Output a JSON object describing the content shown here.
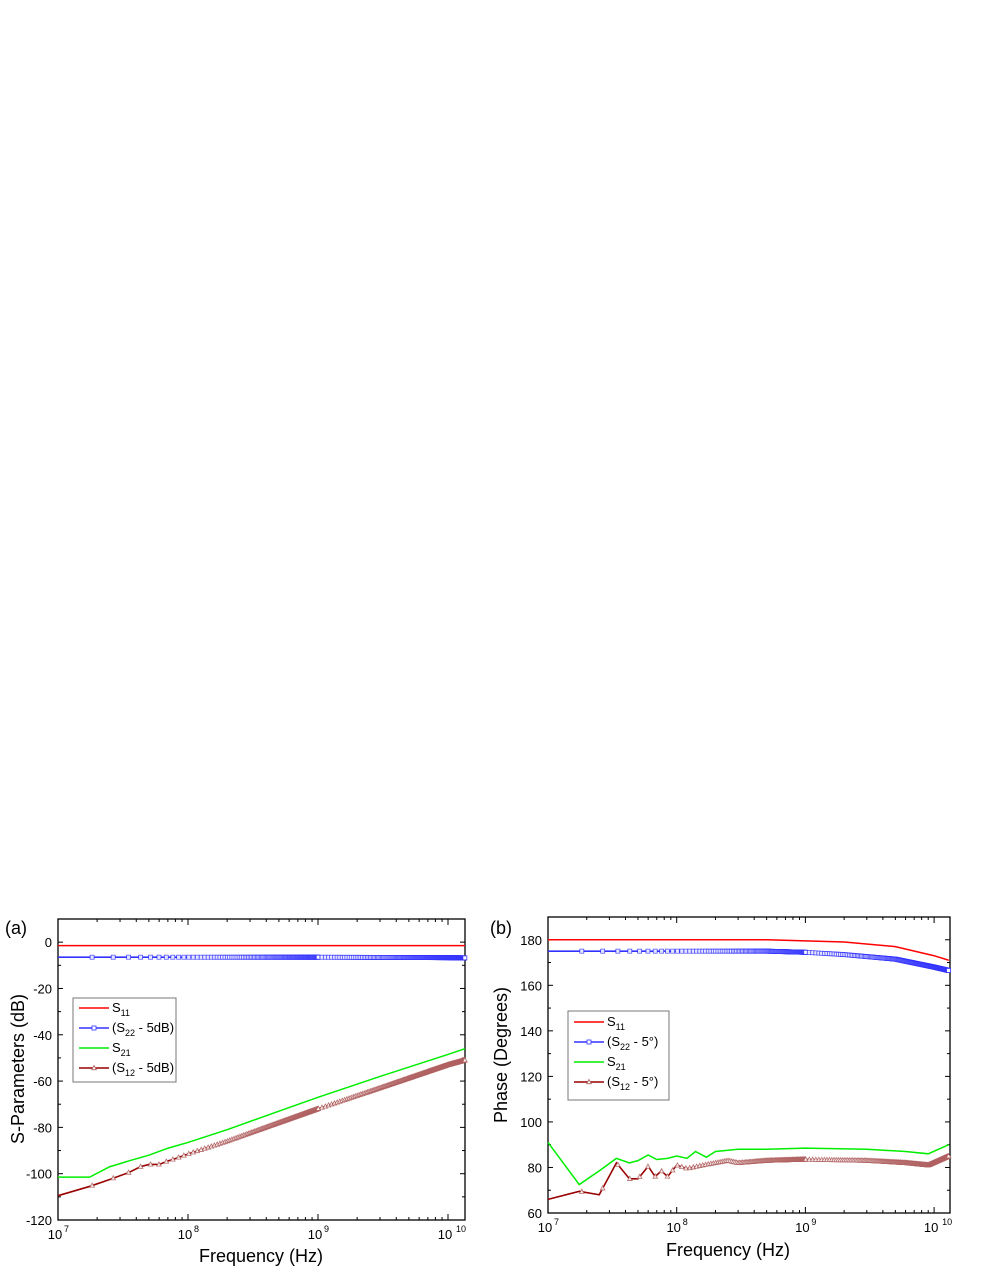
{
  "chart_data": [
    {
      "panel": "(a)",
      "type": "line",
      "title": "",
      "xlabel": "Frequency (Hz)",
      "ylabel": "S-Parameters (dB)",
      "xscale": "log",
      "xlim": [
        10000000.0,
        13500000000.0
      ],
      "ylim": [
        -120,
        10
      ],
      "xticks": [
        "10^7",
        "10^8",
        "10^9",
        "10^10"
      ],
      "yticks": [
        0,
        -20,
        -40,
        -60,
        -80,
        -100,
        -120
      ],
      "grid": false,
      "legend_position": "left-middle",
      "series": [
        {
          "name": "S11",
          "color": "#ff0000",
          "marker": "none",
          "x": [
            10000000.0,
            100000000.0,
            1000000000.0,
            13500000000.0
          ],
          "y": [
            -1.5,
            -1.5,
            -1.5,
            -1.5
          ]
        },
        {
          "name": "(S22 - 5dB)",
          "color": "#3333ff",
          "marker": "square",
          "x": [
            10000000.0,
            100000000.0,
            1000000000.0,
            10000000000.0,
            13500000000.0
          ],
          "y": [
            -6.5,
            -6.5,
            -6.5,
            -6.7,
            -6.8
          ]
        },
        {
          "name": "S21",
          "color": "#00ee00",
          "marker": "none",
          "x": [
            10000000.0,
            17500000.0,
            25000000.0,
            35000000.0,
            50000000.0,
            70000000.0,
            100000000.0,
            200000000.0,
            500000000.0,
            1000000000.0,
            3000000000.0,
            10000000000.0,
            13500000000.0
          ],
          "y": [
            -101.5,
            -101.5,
            -97,
            -94.5,
            -92,
            -89,
            -86.5,
            -81,
            -73,
            -67,
            -58,
            -48.5,
            -46
          ]
        },
        {
          "name": "(S12 - 5dB)",
          "color": "#990000",
          "marker": "triangle",
          "x": [
            10000000.0,
            17500000.0,
            25000000.0,
            35000000.0,
            43000000.0,
            50000000.0,
            60000000.0,
            70000000.0,
            80000000.0,
            100000000.0,
            200000000.0,
            500000000.0,
            1000000000.0,
            3000000000.0,
            10000000000.0,
            13500000000.0
          ],
          "y": [
            -109.5,
            -105.5,
            -102.5,
            -99.5,
            -97,
            -96,
            -96,
            -94.5,
            -93.5,
            -91.5,
            -86,
            -78,
            -72,
            -63,
            -53,
            -51
          ]
        }
      ]
    },
    {
      "panel": "(b)",
      "type": "line",
      "title": "",
      "xlabel": "Frequency (Hz)",
      "ylabel": "Phase (Degrees)",
      "xscale": "log",
      "xlim": [
        10000000.0,
        13000000000.0
      ],
      "ylim": [
        60,
        190
      ],
      "xticks": [
        "10^7",
        "10^8",
        "10^9",
        "10^10"
      ],
      "yticks": [
        60,
        80,
        100,
        120,
        140,
        160,
        180
      ],
      "grid": false,
      "legend_position": "left-middle",
      "series": [
        {
          "name": "S11",
          "color": "#ff0000",
          "marker": "none",
          "x": [
            10000000.0,
            100000000.0,
            500000000.0,
            1000000000.0,
            2000000000.0,
            5000000000.0,
            10000000000.0,
            13000000000.0
          ],
          "y": [
            180,
            180,
            180,
            179.5,
            179,
            177,
            173,
            171
          ]
        },
        {
          "name": "(S22 - 5°)",
          "color": "#3333ff",
          "marker": "square",
          "x": [
            10000000.0,
            100000000.0,
            500000000.0,
            1000000000.0,
            2000000000.0,
            5000000000.0,
            10000000000.0,
            13000000000.0
          ],
          "y": [
            175,
            175,
            175,
            174.5,
            173.5,
            171.5,
            168,
            166.5
          ]
        },
        {
          "name": "S21",
          "color": "#00ee00",
          "marker": "none",
          "x": [
            10000000.0,
            17500000.0,
            25000000.0,
            34000000.0,
            43000000.0,
            50000000.0,
            60000000.0,
            70000000.0,
            85000000.0,
            100000000.0,
            120000000.0,
            140000000.0,
            170000000.0,
            200000000.0,
            300000000.0,
            500000000.0,
            1000000000.0,
            3000000000.0,
            6000000000.0,
            9000000000.0,
            13000000000.0
          ],
          "y": [
            91,
            72.5,
            78.5,
            84,
            82,
            83,
            85.5,
            83.5,
            84,
            85,
            84,
            87,
            84.5,
            87,
            88,
            88,
            88.5,
            88,
            87,
            86,
            90
          ]
        },
        {
          "name": "(S12 - 5°)",
          "color": "#990000",
          "marker": "triangle",
          "x": [
            10000000.0,
            17500000.0,
            25000000.0,
            34000000.0,
            43000000.0,
            50000000.0,
            60000000.0,
            68000000.0,
            76000000.0,
            85000000.0,
            100000000.0,
            120000000.0,
            160000000.0,
            250000000.0,
            300000000.0,
            500000000.0,
            1000000000.0,
            3000000000.0,
            6000000000.0,
            9000000000.0,
            13000000000.0
          ],
          "y": [
            66,
            69.5,
            68,
            82,
            75,
            75,
            80.5,
            76,
            78.5,
            76,
            81,
            79.5,
            81,
            83,
            82,
            83,
            83.5,
            83,
            82,
            81,
            85
          ]
        }
      ]
    }
  ],
  "panels": {
    "a": {
      "label": "(a)",
      "ylabel": "S-Parameters (dB)",
      "xlabel": "Frequency (Hz)",
      "yticks": [
        "0",
        "-20",
        "-40",
        "-60",
        "-80",
        "-100",
        "-120"
      ],
      "xticks_base": [
        "10",
        "10",
        "10",
        "10"
      ],
      "xticks_exp": [
        "7",
        "8",
        "9",
        "10"
      ],
      "legend": [
        {
          "base": "S",
          "sub": "11",
          "suffix": "",
          "prefix": ""
        },
        {
          "base": "S",
          "sub": "22",
          "suffix": " - 5dB)",
          "prefix": "("
        },
        {
          "base": "S",
          "sub": "21",
          "suffix": "",
          "prefix": ""
        },
        {
          "base": "S",
          "sub": "12",
          "suffix": " - 5dB)",
          "prefix": "("
        }
      ]
    },
    "b": {
      "label": "(b)",
      "ylabel": "Phase (Degrees)",
      "xlabel": "Frequency (Hz)",
      "yticks": [
        "180",
        "160",
        "140",
        "120",
        "100",
        "80",
        "60"
      ],
      "xticks_base": [
        "10",
        "10",
        "10",
        "10"
      ],
      "xticks_exp": [
        "7",
        "8",
        "9",
        "10"
      ],
      "legend": [
        {
          "base": "S",
          "sub": "11",
          "suffix": "",
          "prefix": ""
        },
        {
          "base": "S",
          "sub": "22",
          "suffix": " - 5°)",
          "prefix": "("
        },
        {
          "base": "S",
          "sub": "21",
          "suffix": "",
          "prefix": ""
        },
        {
          "base": "S",
          "sub": "12",
          "suffix": " - 5°)",
          "prefix": "("
        }
      ]
    }
  },
  "colors": {
    "s11": "#ff0000",
    "s22": "#3333ff",
    "s21": "#00ee00",
    "s12": "#990000",
    "axis": "#000000",
    "legend_border": "#777777"
  }
}
